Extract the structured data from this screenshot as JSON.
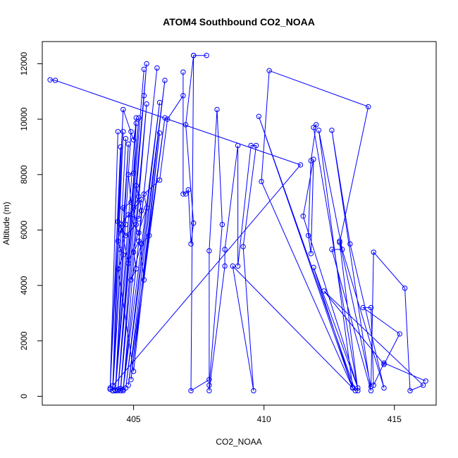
{
  "chart_data": {
    "type": "line",
    "title": "ATOM4 Southbound CO2_NOAA",
    "xlabel": "CO2_NOAA",
    "ylabel": "Altitude (m)",
    "xlim": [
      401.5,
      416.6
    ],
    "ylim": [
      -320,
      12800
    ],
    "xticks": [
      405,
      410,
      415
    ],
    "yticks": [
      0,
      2000,
      4000,
      6000,
      8000,
      10000,
      12000
    ],
    "grid": false,
    "series": [
      {
        "color": "#0000ff",
        "marker": "open-circle",
        "points": [
          [
            401.8,
            11420
          ],
          [
            402.0,
            11400
          ],
          [
            411.4,
            8350
          ],
          [
            404.2,
            380
          ],
          [
            404.6,
            9550
          ],
          [
            404.1,
            300
          ],
          [
            404.4,
            9550
          ],
          [
            404.1,
            250
          ],
          [
            404.5,
            9000
          ],
          [
            404.2,
            200
          ],
          [
            404.7,
            9300
          ],
          [
            404.2,
            200
          ],
          [
            404.8,
            9100
          ],
          [
            404.3,
            200
          ],
          [
            404.9,
            9550
          ],
          [
            404.3,
            220
          ],
          [
            405.1,
            10050
          ],
          [
            404.3,
            200
          ],
          [
            405.2,
            10050
          ],
          [
            404.4,
            250
          ],
          [
            405.4,
            11800
          ],
          [
            404.4,
            200
          ],
          [
            405.5,
            12000
          ],
          [
            404.5,
            280
          ],
          [
            405.4,
            10850
          ],
          [
            404.5,
            200
          ],
          [
            405.5,
            10550
          ],
          [
            404.6,
            200
          ],
          [
            405.9,
            11850
          ],
          [
            404.6,
            250
          ],
          [
            406.0,
            10600
          ],
          [
            404.7,
            300
          ],
          [
            406.2,
            11400
          ],
          [
            404.8,
            400
          ],
          [
            406.2,
            10050
          ],
          [
            404.9,
            600
          ],
          [
            406.0,
            9500
          ],
          [
            405.0,
            900
          ],
          [
            404.4,
            4600
          ],
          [
            404.6,
            5100
          ],
          [
            404.5,
            5300
          ],
          [
            404.4,
            5600
          ],
          [
            404.5,
            6000
          ],
          [
            404.7,
            6200
          ],
          [
            404.6,
            6800
          ],
          [
            404.9,
            7000
          ],
          [
            404.8,
            8000
          ],
          [
            405.0,
            8050
          ],
          [
            405.1,
            9850
          ],
          [
            405.0,
            9250
          ],
          [
            404.6,
            10350
          ],
          [
            404.4,
            6300
          ],
          [
            404.7,
            5800
          ],
          [
            405.1,
            6200
          ],
          [
            405.0,
            6800
          ],
          [
            405.2,
            7200
          ],
          [
            405.1,
            7600
          ],
          [
            405.3,
            6700
          ],
          [
            405.2,
            5600
          ],
          [
            405.0,
            5200
          ],
          [
            405.1,
            4600
          ],
          [
            404.9,
            4200
          ],
          [
            405.3,
            5500
          ],
          [
            405.6,
            5800
          ],
          [
            405.4,
            4200
          ],
          [
            405.2,
            5900
          ],
          [
            404.8,
            6550
          ],
          [
            405.2,
            6400
          ],
          [
            405.3,
            7100
          ],
          [
            404.5,
            6200
          ],
          [
            404.8,
            4800
          ],
          [
            405.5,
            6800
          ],
          [
            405.4,
            7300
          ],
          [
            406.0,
            7800
          ],
          [
            406.3,
            10000
          ],
          [
            406.9,
            10850
          ],
          [
            406.9,
            11700
          ],
          [
            406.9,
            7300
          ],
          [
            407.0,
            7300
          ],
          [
            407.1,
            7450
          ],
          [
            407.2,
            5500
          ],
          [
            407.3,
            6250
          ],
          [
            407.0,
            9800
          ],
          [
            407.3,
            12300
          ],
          [
            407.8,
            12300
          ],
          [
            407.3,
            12300
          ],
          [
            407.2,
            200
          ],
          [
            407.9,
            600
          ],
          [
            407.9,
            5250
          ],
          [
            408.2,
            10350
          ],
          [
            408.4,
            6200
          ],
          [
            407.9,
            400
          ],
          [
            407.9,
            200
          ],
          [
            408.5,
            4700
          ],
          [
            408.5,
            5300
          ],
          [
            409.0,
            9050
          ],
          [
            409.0,
            4700
          ],
          [
            409.5,
            9050
          ],
          [
            409.7,
            9050
          ],
          [
            409.2,
            5400
          ],
          [
            409.6,
            200
          ],
          [
            408.8,
            4700
          ],
          [
            413.5,
            200
          ],
          [
            409.8,
            10100
          ],
          [
            413.4,
            300
          ],
          [
            409.9,
            7750
          ],
          [
            410.2,
            11750
          ],
          [
            414.0,
            10450
          ],
          [
            412.9,
            5550
          ],
          [
            413.6,
            200
          ],
          [
            411.9,
            9700
          ],
          [
            412.0,
            9800
          ],
          [
            411.8,
            8500
          ],
          [
            411.7,
            5800
          ],
          [
            411.8,
            5150
          ],
          [
            411.9,
            8550
          ],
          [
            411.5,
            6500
          ],
          [
            413.6,
            300
          ],
          [
            411.9,
            4650
          ],
          [
            413.4,
            320
          ],
          [
            412.1,
            9600
          ],
          [
            413.0,
            5300
          ],
          [
            412.6,
            5300
          ],
          [
            414.1,
            200
          ],
          [
            412.6,
            9600
          ],
          [
            413.3,
            5500
          ],
          [
            414.6,
            300
          ],
          [
            412.9,
            5600
          ],
          [
            414.1,
            350
          ],
          [
            414.2,
            5200
          ],
          [
            415.4,
            3900
          ],
          [
            415.6,
            200
          ],
          [
            416.1,
            400
          ],
          [
            412.3,
            3800
          ],
          [
            414.6,
            1150
          ],
          [
            415.2,
            2250
          ],
          [
            413.8,
            3200
          ],
          [
            414.1,
            3200
          ],
          [
            414.2,
            400
          ],
          [
            414.6,
            1200
          ],
          [
            416.2,
            550
          ]
        ]
      }
    ]
  }
}
